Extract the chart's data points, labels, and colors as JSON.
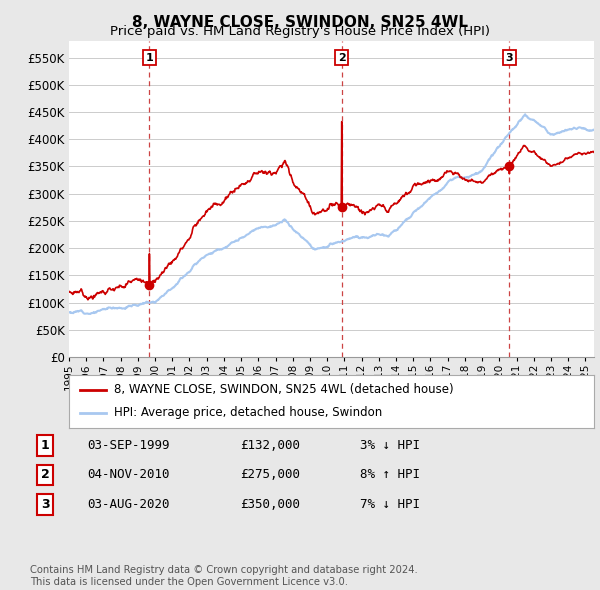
{
  "title": "8, WAYNE CLOSE, SWINDON, SN25 4WL",
  "subtitle": "Price paid vs. HM Land Registry's House Price Index (HPI)",
  "ytick_values": [
    0,
    50000,
    100000,
    150000,
    200000,
    250000,
    300000,
    350000,
    400000,
    450000,
    500000,
    550000
  ],
  "ylim": [
    0,
    580000
  ],
  "xlim_start": 1995.0,
  "xlim_end": 2025.5,
  "sale_dates": [
    1999.67,
    2010.84,
    2020.59
  ],
  "sale_prices": [
    132000,
    275000,
    350000
  ],
  "sale_labels": [
    "1",
    "2",
    "3"
  ],
  "red_line_color": "#cc0000",
  "blue_line_color": "#a8c8f0",
  "dashed_line_color": "#cc4444",
  "background_color": "#e8e8e8",
  "plot_bg_color": "#ffffff",
  "legend_entries": [
    "8, WAYNE CLOSE, SWINDON, SN25 4WL (detached house)",
    "HPI: Average price, detached house, Swindon"
  ],
  "table_rows": [
    [
      "1",
      "03-SEP-1999",
      "£132,000",
      "3% ↓ HPI"
    ],
    [
      "2",
      "04-NOV-2010",
      "£275,000",
      "8% ↑ HPI"
    ],
    [
      "3",
      "03-AUG-2020",
      "£350,000",
      "7% ↓ HPI"
    ]
  ],
  "footer": "Contains HM Land Registry data © Crown copyright and database right 2024.\nThis data is licensed under the Open Government Licence v3.0."
}
